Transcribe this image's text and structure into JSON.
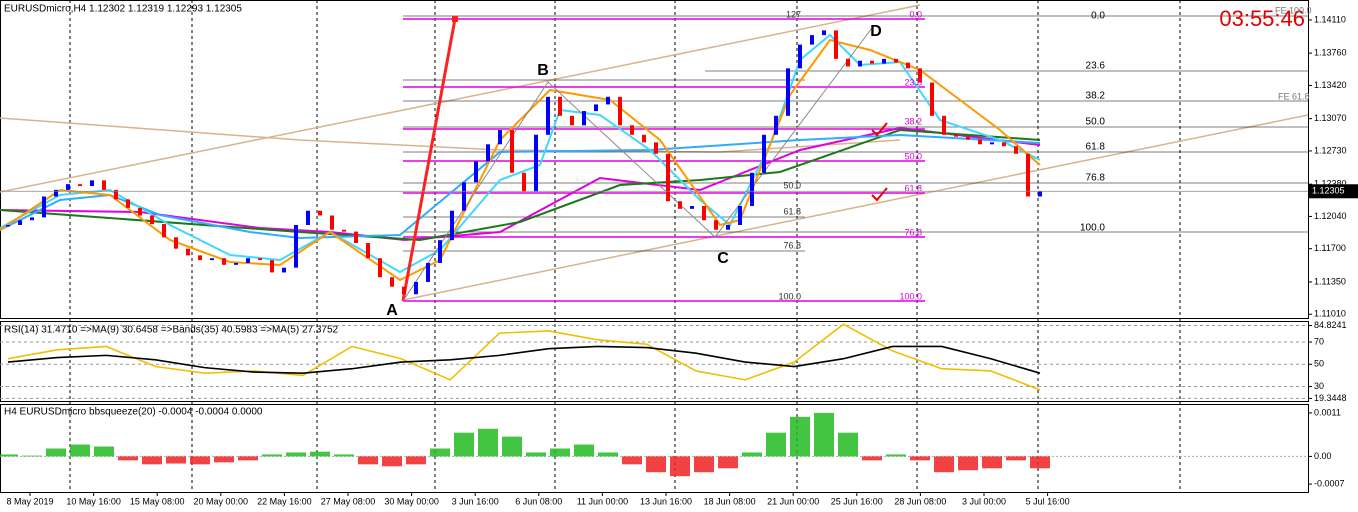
{
  "header": "EURUSDmicro,H4  1.12302 1.12319 1.12293 1.12305",
  "clock": "03:55:46",
  "fe_labels": [
    "FE 100.0",
    "FE 61.8"
  ],
  "points": [
    "A",
    "B",
    "C",
    "D"
  ],
  "fib_gray": [
    "0.0",
    "23.6",
    "38.2",
    "50.0",
    "61.8",
    "76.8",
    "100.0"
  ],
  "fib_magenta": [
    "0.0",
    "23.6",
    "38.2",
    "50.0",
    "61.8",
    "76.8",
    "100.0"
  ],
  "fib_blue": [
    "127",
    "50.0",
    "61.8",
    "76.8",
    "100.0"
  ],
  "time_labels": [
    "8 May 2019",
    "10 May 16:00",
    "15 May 08:00",
    "20 May 00:00",
    "22 May 16:00",
    "27 May 08:00",
    "30 May 00:00",
    "3 Jun 16:00",
    "6 Jun 08:00",
    "11 Jun 00:00",
    "13 Jun 16:00",
    "18 Jun 08:00",
    "21 Jun 00:00",
    "25 Jun 16:00",
    "28 Jun 08:00",
    "3 Jul 00:00",
    "5 Jul 16:00"
  ],
  "chart_data": [
    {
      "type": "price",
      "title": "EURUSDmicro,H4",
      "up_color": "#0000ff",
      "down_color": "#ff0000",
      "values": [
        1.1195,
        1.12,
        1.1203,
        1.1225,
        1.1232,
        1.1238,
        1.1236,
        1.1242,
        1.1232,
        1.1222,
        1.1213,
        1.1205,
        1.1196,
        1.1182,
        1.117,
        1.1163,
        1.1158,
        1.116,
        1.1153,
        1.1155,
        1.116,
        1.1158,
        1.1145,
        1.115,
        1.1195,
        1.121,
        1.1205,
        1.119,
        1.1188,
        1.1176,
        1.116,
        1.114,
        1.113,
        1.1122,
        1.1135,
        1.1155,
        1.1179,
        1.121,
        1.124,
        1.1262,
        1.128,
        1.1295,
        1.125,
        1.123,
        1.129,
        1.133,
        1.131,
        1.13,
        1.1315,
        1.1322,
        1.133,
        1.13,
        1.129,
        1.1282,
        1.127,
        1.122,
        1.1212,
        1.1215,
        1.12,
        1.119,
        1.1195,
        1.1215,
        1.125,
        1.129,
        1.131,
        1.136,
        1.1385,
        1.1395,
        1.14,
        1.137,
        1.1362,
        1.1368,
        1.1365,
        1.137,
        1.1366,
        1.136,
        1.1345,
        1.131,
        1.129,
        1.1288,
        1.1285,
        1.128,
        1.1282,
        1.1278,
        1.127,
        1.1225,
        1.12305
      ],
      "current_price": 1.12305,
      "ylim": [
        1.1097,
        1.1432
      ],
      "yticks": [
        {
          "value": 1.1411,
          "label": "1.14110"
        },
        {
          "value": 1.1376,
          "label": "1.13760"
        },
        {
          "value": 1.1342,
          "label": "1.13420"
        },
        {
          "value": 1.1307,
          "label": "1.13070"
        },
        {
          "value": 1.1273,
          "label": "1.12730"
        },
        {
          "value": 1.1238,
          "label": "1.12380"
        },
        {
          "value": 1.1204,
          "label": "1.12040"
        },
        {
          "value": 1.117,
          "label": "1.11700"
        },
        {
          "value": 1.1135,
          "label": "1.11350"
        },
        {
          "value": 1.1101,
          "label": "1.11010"
        }
      ]
    },
    {
      "type": "line",
      "title": "RSI(14) 31.4710  =>MA(9) 30.6458  =>Bands(35) 40.5983  =>MA(5) 27.3752",
      "series": [
        {
          "name": "RSI(14)",
          "color": "#f0c000",
          "values": [
            55,
            63,
            66,
            48,
            42,
            44,
            40,
            66,
            55,
            36,
            78,
            80,
            72,
            68,
            44,
            36,
            52,
            86,
            62,
            46,
            44,
            27
          ]
        },
        {
          "name": "Bands(35)",
          "color": "#000000",
          "values": [
            52,
            56,
            58,
            54,
            47,
            43,
            42,
            46,
            52,
            54,
            58,
            64,
            66,
            65,
            60,
            52,
            48,
            55,
            66,
            66,
            55,
            42
          ]
        }
      ],
      "ylim": [
        17,
        88
      ],
      "yticks": [
        84.8241,
        70,
        50,
        30,
        19.3448
      ]
    },
    {
      "type": "histogram",
      "title": "H4 EURUSDmicro bbsqueeze(20) -0.0004 -0.0004 0.0000",
      "up_color": "#22bb22",
      "down_color": "#ee2222",
      "values": [
        5e-05,
        2e-05,
        0.0002,
        0.0003,
        0.00025,
        -0.0001,
        -0.0002,
        -0.00018,
        -0.0002,
        -0.00015,
        -0.0001,
        5e-05,
        0.0001,
        0.00012,
        5e-05,
        -0.0002,
        -0.00025,
        -0.0002,
        0.0002,
        0.0006,
        0.0007,
        0.0005,
        0.0001,
        0.0002,
        0.0003,
        0.0001,
        -0.0002,
        -0.0004,
        -0.0005,
        -0.0004,
        -0.0003,
        0.0001,
        0.0006,
        0.001,
        0.0011,
        0.0006,
        -0.0001,
        5e-05,
        -0.0001,
        -0.0004,
        -0.00035,
        -0.0003,
        -0.0001,
        -0.0003
      ],
      "ylim": [
        -0.0009,
        0.0013
      ],
      "yticks": [
        0.0011,
        {
          "value": 0,
          "label": "0.00"
        },
        -0.0007
      ]
    }
  ]
}
